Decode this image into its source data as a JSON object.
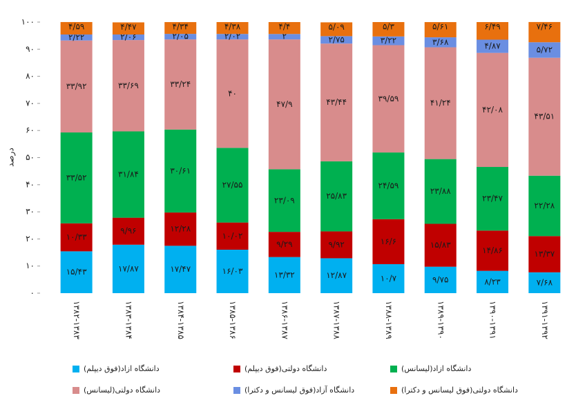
{
  "chart_data": {
    "type": "stacked_bar",
    "y_label": "درصد",
    "categories": [
      "۱۳۸۲-۱۳۸۳",
      "۱۳۸۳-۱۳۸۴",
      "۱۳۸۴-۱۳۸۵",
      "۱۳۸۵-۱۳۸۶",
      "۱۳۸۶-۱۳۸۷",
      "۱۳۸۷-۱۳۸۸",
      "۱۳۸۸-۱۳۸۹",
      "۱۳۸۹-۱۳۹۰",
      "۱۳۹۰-۱۳۹۱",
      "۱۳۹۱-۱۳۹۲"
    ],
    "series": [
      {
        "name": "دانشگاه ازاد(فوق دیپلم)",
        "color": "#00b0f0",
        "values": [
          15.43,
          17.87,
          17.47,
          16.03,
          13.32,
          12.87,
          10.7,
          9.75,
          8.23,
          7.68
        ],
        "value_labels": [
          "۱۵/۴۳",
          "۱۷/۸۷",
          "۱۷/۴۷",
          "۱۶/۰۳",
          "۱۳/۳۲",
          "۱۲/۸۷",
          "۱۰/۷",
          "۹/۷۵",
          "۸/۲۳",
          "۷/۶۸"
        ]
      },
      {
        "name": "دانشگاه دولتی(فوق دیپلم)",
        "color": "#c00000",
        "values": [
          10.33,
          9.96,
          12.28,
          10.02,
          9.29,
          9.92,
          16.6,
          15.83,
          14.86,
          13.37
        ],
        "value_labels": [
          "۱۰/۳۳",
          "۹/۹۶",
          "۱۲/۲۸",
          "۱۰/۰۲",
          "۹/۲۹",
          "۹/۹۲",
          "۱۶/۶",
          "۱۵/۸۳",
          "۱۴/۸۶",
          "۱۳/۳۷"
        ]
      },
      {
        "name": "دانشگاه ازاد(لیسانس)",
        "color": "#00b050",
        "values": [
          33.52,
          31.84,
          30.61,
          27.55,
          23.09,
          25.83,
          24.59,
          23.88,
          23.47,
          22.28
        ],
        "value_labels": [
          "۳۳/۵۲",
          "۳۱/۸۴",
          "۳۰/۶۱",
          "۲۷/۵۵",
          "۲۳/۰۹",
          "۲۵/۸۳",
          "۲۴/۵۹",
          "۲۳/۸۸",
          "۲۳/۴۷",
          "۲۲/۲۸"
        ]
      },
      {
        "name": "دانشگاه دولتی(لیسانس)",
        "color": "#d88c8c",
        "values": [
          33.92,
          33.69,
          33.24,
          40,
          47.9,
          43.44,
          39.59,
          41.24,
          42.08,
          43.51
        ],
        "value_labels": [
          "۳۳/۹۲",
          "۳۳/۶۹",
          "۳۳/۲۴",
          "۴۰",
          "۴۷/۹",
          "۴۳/۴۴",
          "۳۹/۵۹",
          "۴۱/۲۴",
          "۴۲/۰۸",
          "۴۳/۵۱"
        ]
      },
      {
        "name": "دانشگاه آزاد(فوق لیسانس و دکترا)",
        "color": "#6a8ee2",
        "values": [
          2.22,
          2.06,
          2.05,
          2.02,
          2,
          2.75,
          3.22,
          3.68,
          4.87,
          5.72
        ],
        "value_labels": [
          "۲/۲۲",
          "۲/۰۶",
          "۲/۰۵",
          "۲/۰۲",
          "۲",
          "۲/۷۵",
          "۳/۲۲",
          "۳/۶۸",
          "۴/۸۷",
          "۵/۷۲"
        ]
      },
      {
        "name": "دانشگاه دولتی(فوق لیسانس و دکترا)",
        "color": "#e8700e",
        "values": [
          4.59,
          4.47,
          4.34,
          4.38,
          4.4,
          5.09,
          5.3,
          5.61,
          6.49,
          7.46
        ],
        "value_labels": [
          "۴/۵۹",
          "۴/۴۷",
          "۴/۳۴",
          "۴/۳۸",
          "۴/۴",
          "۵/۰۹",
          "۵/۳",
          "۵/۶۱",
          "۶/۴۹",
          "۷/۴۶"
        ]
      }
    ],
    "ylim": [
      0,
      100
    ],
    "yticks": [
      {
        "value": 0,
        "label": "۰"
      },
      {
        "value": 10,
        "label": "۱۰"
      },
      {
        "value": 20,
        "label": "۲۰"
      },
      {
        "value": 30,
        "label": "۳۰"
      },
      {
        "value": 40,
        "label": "۴۰"
      },
      {
        "value": 50,
        "label": "۵۰"
      },
      {
        "value": 60,
        "label": "۶۰"
      },
      {
        "value": 70,
        "label": "۷۰"
      },
      {
        "value": 80,
        "label": "۸۰"
      },
      {
        "value": 90,
        "label": "۹۰"
      },
      {
        "value": 100,
        "label": "۱۰۰"
      }
    ]
  }
}
